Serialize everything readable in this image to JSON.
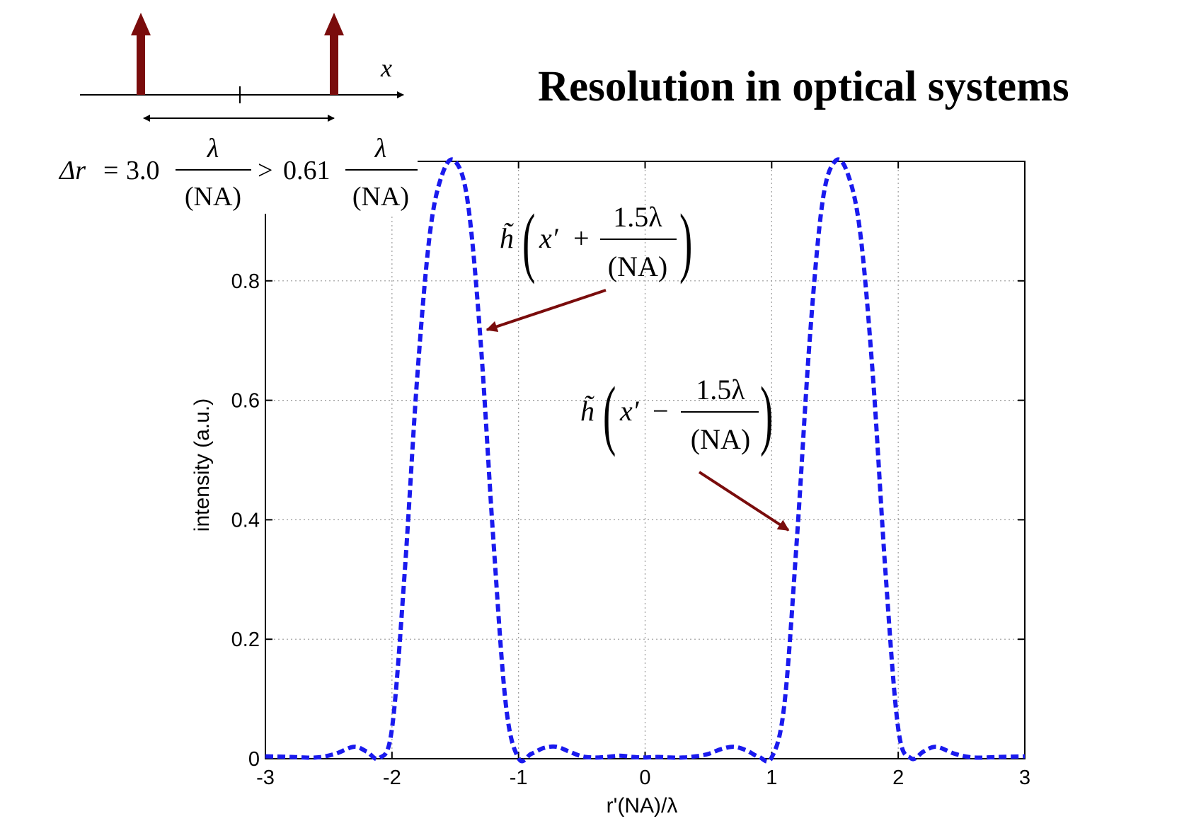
{
  "title": "Resolution in optical systems",
  "diagram": {
    "axis_label": "x"
  },
  "formula": {
    "lhs": "Δr",
    "eq": "=",
    "coef1": "3.0",
    "frac1_num": "λ",
    "frac1_den": "(NA)",
    "gt": ">",
    "coef2": "0.61",
    "frac2_num": "λ",
    "frac2_den": "(NA)"
  },
  "annotations": [
    {
      "fn": "h̃",
      "arg": "x′",
      "op": "+",
      "num": "1.5λ",
      "den": "(NA)"
    },
    {
      "fn": "h̃",
      "arg": "x′",
      "op": "−",
      "num": "1.5λ",
      "den": "(NA)"
    }
  ],
  "colors": {
    "curve": "#1a1aee",
    "arrow": "#7a0c0c",
    "grid": "#9a9a9a"
  },
  "chart_data": {
    "type": "line",
    "xlabel": "r'(NA)/λ",
    "ylabel": "intensity (a.u.)",
    "xlim": [
      -3,
      3
    ],
    "ylim": [
      0,
      1
    ],
    "xticks": [
      "-3",
      "-2",
      "-1",
      "0",
      "1",
      "2",
      "3"
    ],
    "yticks": [
      "0",
      "0.2",
      "0.4",
      "0.6",
      "0.8"
    ],
    "grid": true,
    "series": [
      {
        "style": "dashed",
        "x": [
          -3.0,
          -2.8,
          -2.6,
          -2.45,
          -2.3,
          -2.2,
          -2.1,
          -2.0,
          -1.9,
          -1.8,
          -1.7,
          -1.6,
          -1.5,
          -1.4,
          -1.3,
          -1.2,
          -1.1,
          -1.0,
          -0.9,
          -0.8,
          -0.7,
          -0.6,
          -0.5,
          -0.4,
          -0.3,
          -0.2,
          -0.1,
          0.0,
          0.1,
          0.2,
          0.3,
          0.4,
          0.5,
          0.6,
          0.7,
          0.8,
          0.9,
          1.0,
          1.1,
          1.2,
          1.3,
          1.4,
          1.5,
          1.6,
          1.7,
          1.8,
          1.9,
          2.0,
          2.1,
          2.2,
          2.3,
          2.45,
          2.6,
          2.8,
          3.0
        ],
        "y": [
          0.004,
          0.003,
          0.002,
          0.008,
          0.02,
          0.012,
          0.001,
          0.05,
          0.31,
          0.64,
          0.88,
          0.98,
          1.0,
          0.93,
          0.7,
          0.37,
          0.09,
          0.001,
          0.008,
          0.018,
          0.02,
          0.012,
          0.004,
          0.002,
          0.003,
          0.005,
          0.003,
          0.002,
          0.003,
          0.002,
          0.002,
          0.004,
          0.008,
          0.016,
          0.02,
          0.014,
          0.003,
          0.002,
          0.09,
          0.37,
          0.7,
          0.93,
          1.0,
          0.98,
          0.88,
          0.64,
          0.31,
          0.05,
          0.001,
          0.012,
          0.02,
          0.008,
          0.002,
          0.003,
          0.004
        ]
      }
    ]
  }
}
